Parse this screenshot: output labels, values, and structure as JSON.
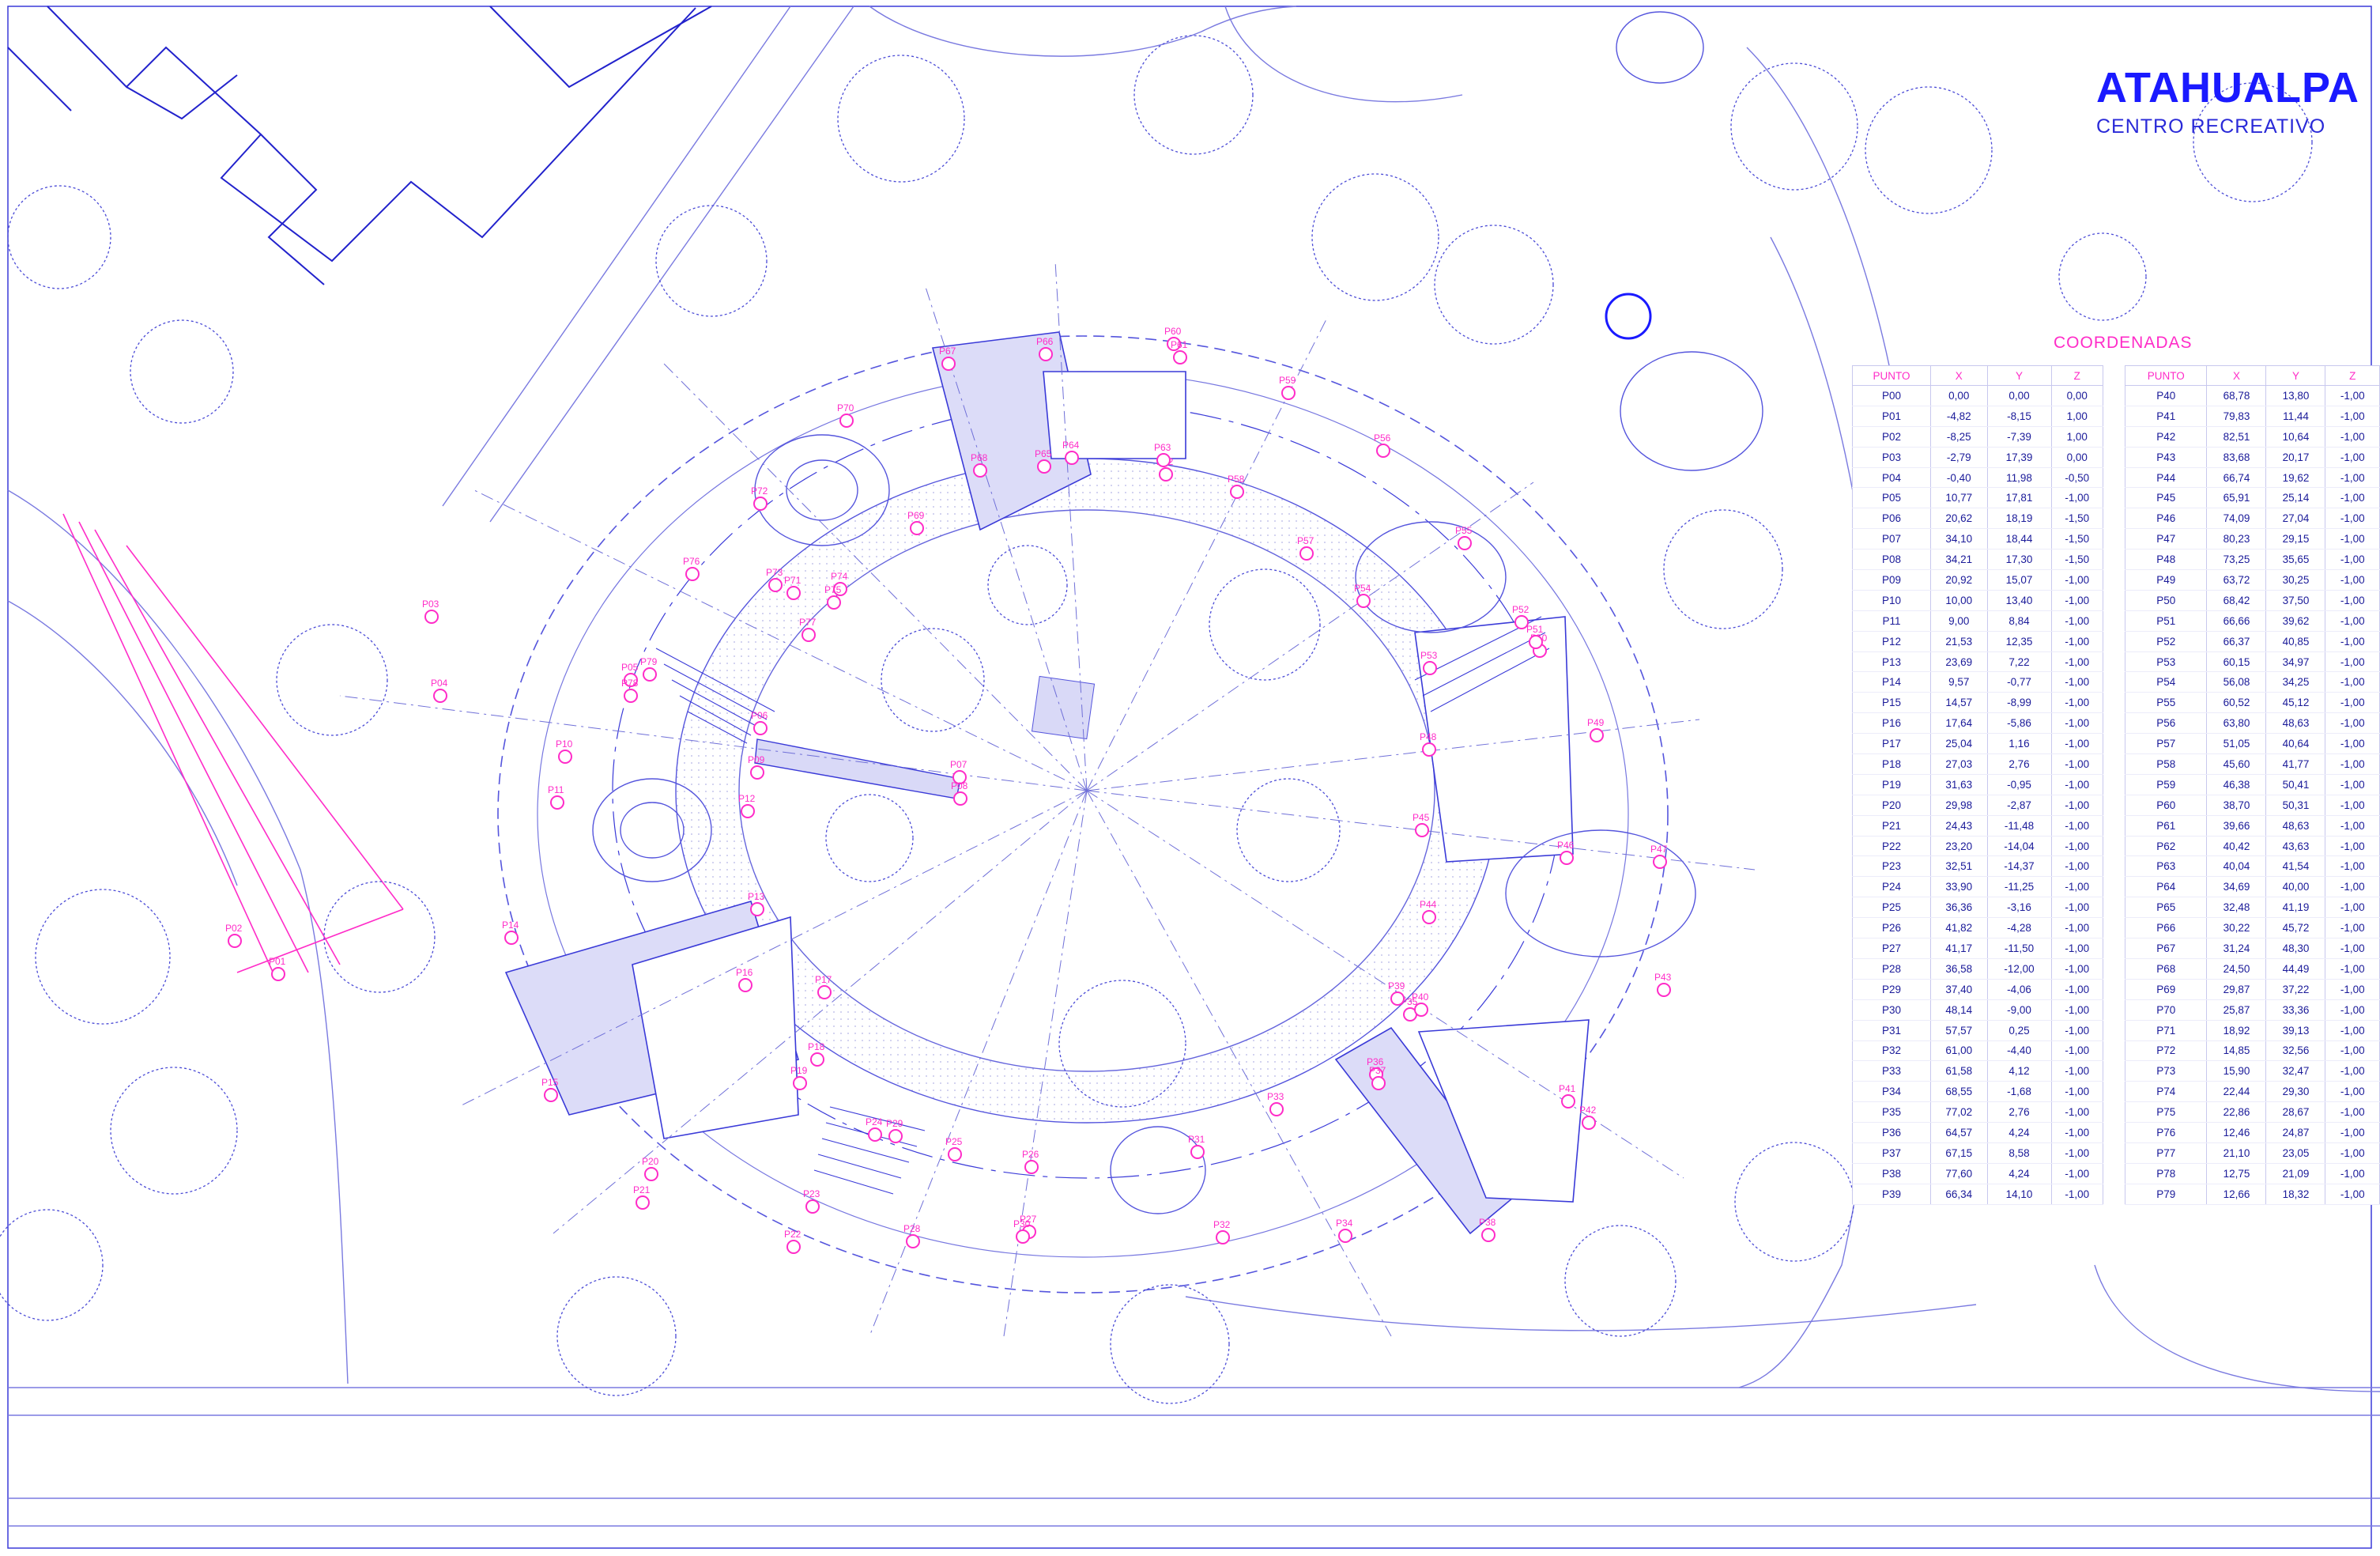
{
  "title": "ATAHUALPA",
  "subtitle": "CENTRO RECREATIVO",
  "table_title": "COORDENADAS",
  "table_headers": [
    "PUNTO",
    "X",
    "Y",
    "Z"
  ],
  "colors": {
    "line": "#3a3ad8",
    "accent": "#ff2cc8",
    "fill": "#d9d9f7",
    "title": "#1a1aff"
  },
  "coordinates": [
    [
      "P00",
      "0,00",
      "0,00",
      "0,00"
    ],
    [
      "P01",
      "-4,82",
      "-8,15",
      "1,00"
    ],
    [
      "P02",
      "-8,25",
      "-7,39",
      "1,00"
    ],
    [
      "P03",
      "-2,79",
      "17,39",
      "0,00"
    ],
    [
      "P04",
      "-0,40",
      "11,98",
      "-0,50"
    ],
    [
      "P05",
      "10,77",
      "17,81",
      "-1,00"
    ],
    [
      "P06",
      "20,62",
      "18,19",
      "-1,50"
    ],
    [
      "P07",
      "34,10",
      "18,44",
      "-1,50"
    ],
    [
      "P08",
      "34,21",
      "17,30",
      "-1,50"
    ],
    [
      "P09",
      "20,92",
      "15,07",
      "-1,00"
    ],
    [
      "P10",
      "10,00",
      "13,40",
      "-1,00"
    ],
    [
      "P11",
      "9,00",
      "8,84",
      "-1,00"
    ],
    [
      "P12",
      "21,53",
      "12,35",
      "-1,00"
    ],
    [
      "P13",
      "23,69",
      "7,22",
      "-1,00"
    ],
    [
      "P14",
      "9,57",
      "-0,77",
      "-1,00"
    ],
    [
      "P15",
      "14,57",
      "-8,99",
      "-1,00"
    ],
    [
      "P16",
      "17,64",
      "-5,86",
      "-1,00"
    ],
    [
      "P17",
      "25,04",
      "1,16",
      "-1,00"
    ],
    [
      "P18",
      "27,03",
      "2,76",
      "-1,00"
    ],
    [
      "P19",
      "31,63",
      "-0,95",
      "-1,00"
    ],
    [
      "P20",
      "29,98",
      "-2,87",
      "-1,00"
    ],
    [
      "P21",
      "24,43",
      "-11,48",
      "-1,00"
    ],
    [
      "P22",
      "23,20",
      "-14,04",
      "-1,00"
    ],
    [
      "P23",
      "32,51",
      "-14,37",
      "-1,00"
    ],
    [
      "P24",
      "33,90",
      "-11,25",
      "-1,00"
    ],
    [
      "P25",
      "36,36",
      "-3,16",
      "-1,00"
    ],
    [
      "P26",
      "41,82",
      "-4,28",
      "-1,00"
    ],
    [
      "P27",
      "41,17",
      "-11,50",
      "-1,00"
    ],
    [
      "P28",
      "36,58",
      "-12,00",
      "-1,00"
    ],
    [
      "P29",
      "37,40",
      "-4,06",
      "-1,00"
    ],
    [
      "P30",
      "48,14",
      "-9,00",
      "-1,00"
    ],
    [
      "P31",
      "57,57",
      "0,25",
      "-1,00"
    ],
    [
      "P32",
      "61,00",
      "-4,40",
      "-1,00"
    ],
    [
      "P33",
      "61,58",
      "4,12",
      "-1,00"
    ],
    [
      "P34",
      "68,55",
      "-1,68",
      "-1,00"
    ],
    [
      "P35",
      "77,02",
      "2,76",
      "-1,00"
    ],
    [
      "P36",
      "64,57",
      "4,24",
      "-1,00"
    ],
    [
      "P37",
      "67,15",
      "8,58",
      "-1,00"
    ],
    [
      "P38",
      "77,60",
      "4,24",
      "-1,00"
    ],
    [
      "P39",
      "66,34",
      "14,10",
      "-1,00"
    ],
    [
      "P40",
      "68,78",
      "13,80",
      "-1,00"
    ],
    [
      "P41",
      "79,83",
      "11,44",
      "-1,00"
    ],
    [
      "P42",
      "82,51",
      "10,64",
      "-1,00"
    ],
    [
      "P43",
      "83,68",
      "20,17",
      "-1,00"
    ],
    [
      "P44",
      "66,74",
      "19,62",
      "-1,00"
    ],
    [
      "P45",
      "65,91",
      "25,14",
      "-1,00"
    ],
    [
      "P46",
      "74,09",
      "27,04",
      "-1,00"
    ],
    [
      "P47",
      "80,23",
      "29,15",
      "-1,00"
    ],
    [
      "P48",
      "73,25",
      "35,65",
      "-1,00"
    ],
    [
      "P49",
      "63,72",
      "30,25",
      "-1,00"
    ],
    [
      "P50",
      "68,42",
      "37,50",
      "-1,00"
    ],
    [
      "P51",
      "66,66",
      "39,62",
      "-1,00"
    ],
    [
      "P52",
      "66,37",
      "40,85",
      "-1,00"
    ],
    [
      "P53",
      "60,15",
      "34,97",
      "-1,00"
    ],
    [
      "P54",
      "56,08",
      "34,25",
      "-1,00"
    ],
    [
      "P55",
      "60,52",
      "45,12",
      "-1,00"
    ],
    [
      "P56",
      "63,80",
      "48,63",
      "-1,00"
    ],
    [
      "P57",
      "51,05",
      "40,64",
      "-1,00"
    ],
    [
      "P58",
      "45,60",
      "41,77",
      "-1,00"
    ],
    [
      "P59",
      "46,38",
      "50,41",
      "-1,00"
    ],
    [
      "P60",
      "38,70",
      "50,31",
      "-1,00"
    ],
    [
      "P61",
      "39,66",
      "48,63",
      "-1,00"
    ],
    [
      "P62",
      "40,42",
      "43,63",
      "-1,00"
    ],
    [
      "P63",
      "40,04",
      "41,54",
      "-1,00"
    ],
    [
      "P64",
      "34,69",
      "40,00",
      "-1,00"
    ],
    [
      "P65",
      "32,48",
      "41,19",
      "-1,00"
    ],
    [
      "P66",
      "30,22",
      "45,72",
      "-1,00"
    ],
    [
      "P67",
      "31,24",
      "48,30",
      "-1,00"
    ],
    [
      "P68",
      "24,50",
      "44,49",
      "-1,00"
    ],
    [
      "P69",
      "29,87",
      "37,22",
      "-1,00"
    ],
    [
      "P70",
      "25,87",
      "33,36",
      "-1,00"
    ],
    [
      "P71",
      "18,92",
      "39,13",
      "-1,00"
    ],
    [
      "P72",
      "14,85",
      "32,56",
      "-1,00"
    ],
    [
      "P73",
      "15,90",
      "32,47",
      "-1,00"
    ],
    [
      "P74",
      "22,44",
      "29,30",
      "-1,00"
    ],
    [
      "P75",
      "22,86",
      "28,67",
      "-1,00"
    ],
    [
      "P76",
      "12,46",
      "24,87",
      "-1,00"
    ],
    [
      "P77",
      "21,10",
      "23,05",
      "-1,00"
    ],
    [
      "P78",
      "12,75",
      "21,09",
      "-1,00"
    ],
    [
      "P79",
      "12,66",
      "18,32",
      "-1,00"
    ]
  ]
}
